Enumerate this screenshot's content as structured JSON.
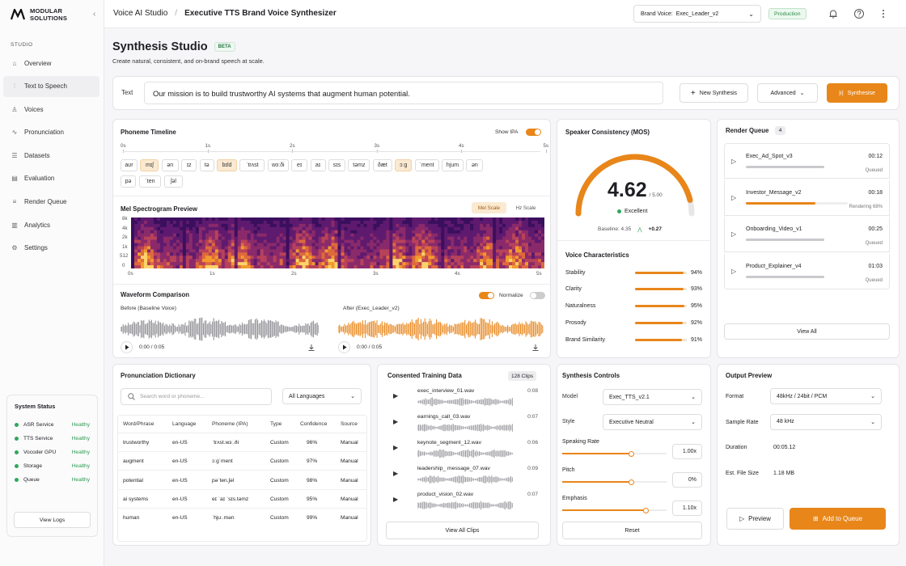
{
  "brand": {
    "name_line1": "MODULAR",
    "name_line2": "SOLUTIONS"
  },
  "sidebar": {
    "section": "STUDIO",
    "items": [
      {
        "label": "Overview",
        "icon": "home-icon"
      },
      {
        "label": "Text to Speech",
        "icon": "waveform-icon"
      },
      {
        "label": "Voices",
        "icon": "person-voice-icon"
      },
      {
        "label": "Pronunciation",
        "icon": "pulse-icon"
      },
      {
        "label": "Datasets",
        "icon": "database-icon"
      },
      {
        "label": "Evaluation",
        "icon": "clipboard-icon"
      },
      {
        "label": "Render Queue",
        "icon": "queue-icon"
      },
      {
        "label": "Analytics",
        "icon": "bar-chart-icon"
      },
      {
        "label": "Settings",
        "icon": "gear-icon"
      }
    ],
    "active_index": 1,
    "system_status": {
      "title": "System Status",
      "items": [
        {
          "name": "ASR Service",
          "status": "Healthy"
        },
        {
          "name": "TTS Service",
          "status": "Healthy"
        },
        {
          "name": "Vocoder GPU",
          "status": "Healthy"
        },
        {
          "name": "Storage",
          "status": "Healthy"
        },
        {
          "name": "Queue",
          "status": "Healthy"
        }
      ],
      "button": "View Logs"
    }
  },
  "topbar": {
    "crumb1": "Voice AI Studio",
    "crumb2": "Executive TTS Brand Voice Synthesizer",
    "brand_voice_label": "Brand Voice:",
    "brand_voice_value": "Exec_Leader_v2",
    "env_badge": "Production"
  },
  "page": {
    "title": "Synthesis Studio",
    "badge": "BETA",
    "subtitle": "Create natural, consistent, and on-brand speech at scale."
  },
  "text_bar": {
    "label": "Text",
    "value": "Our mission is to build trustworthy AI systems that augment human potential.",
    "new_button": "New Synthesis",
    "advanced": "Advanced",
    "synth_button": "Synthesise"
  },
  "phoneme": {
    "title": "Phoneme Timeline",
    "toggle_label": "Show IPA",
    "ticks": [
      "0s",
      "1s",
      "2s",
      "3s",
      "4s",
      "5s"
    ],
    "row1": [
      {
        "p": "aʊr",
        "hl": false
      },
      {
        "p": "mɪʃ",
        "hl": true
      },
      {
        "p": "ən",
        "hl": false
      },
      {
        "p": "ɪz",
        "hl": false
      },
      {
        "p": "tə",
        "hl": false
      },
      {
        "p": "bɪld",
        "hl": true
      },
      {
        "p": "ˈtrʌst",
        "hl": false
      },
      {
        "p": "wɜːði",
        "hl": false
      },
      {
        "p": "eɪ",
        "hl": false
      },
      {
        "p": "aɪ",
        "hl": false
      },
      {
        "p": "sɪs",
        "hl": false
      },
      {
        "p": "təmz",
        "hl": false
      },
      {
        "p": "ðæt",
        "hl": false
      },
      {
        "p": "ɔːg",
        "hl": true
      },
      {
        "p": "ˈment",
        "hl": false
      },
      {
        "p": "hjum",
        "hl": false
      },
      {
        "p": "ən",
        "hl": false
      }
    ],
    "row2": [
      {
        "p": "pə",
        "hl": false
      },
      {
        "p": "ˈten",
        "hl": false
      },
      {
        "p": "ʃəl",
        "hl": false
      }
    ]
  },
  "mel": {
    "title": "Mel Spectrogram Preview",
    "mode_on": "Mel Scale",
    "mode_off": "Hz Scale",
    "y_ticks": [
      "8k",
      "4k",
      "2k",
      "1k",
      "512",
      "0"
    ],
    "x_ticks": [
      "0s",
      "1s",
      "2s",
      "3s",
      "4s",
      "5s"
    ]
  },
  "waveform": {
    "title": "Waveform Comparison",
    "normalize": "Normalize",
    "before_label": "Before (Baseline Voice)",
    "after_label": "After (Exec_Leader_v2)",
    "before_time": "0:00 / 0:05",
    "after_time": "0:00 / 0:05"
  },
  "consistency": {
    "title": "Speaker Consistency (MOS)",
    "score": "4.62",
    "max": "/ 5.00",
    "score_value": 4.62,
    "score_max": 5,
    "rating": "Excellent",
    "baseline_label": "Baseline: 4.35",
    "delta": "+0.27",
    "characteristics_title": "Voice Characteristics",
    "characteristics": [
      {
        "name": "Stability",
        "value": "94%",
        "pct": 94
      },
      {
        "name": "Clarity",
        "value": "93%",
        "pct": 93
      },
      {
        "name": "Naturalness",
        "value": "95%",
        "pct": 95
      },
      {
        "name": "Prosody",
        "value": "92%",
        "pct": 92
      },
      {
        "name": "Brand Similarity",
        "value": "91%",
        "pct": 91
      }
    ]
  },
  "queue": {
    "title": "Render Queue",
    "count": "4",
    "items": [
      {
        "name": "Exec_Ad_Spot_v3",
        "time": "00:12",
        "status": "Queued",
        "progress": 0
      },
      {
        "name": "Investor_Message_v2",
        "time": "00:18",
        "status": "Rendering 68%",
        "progress": 68
      },
      {
        "name": "Onboarding_Video_v1",
        "time": "00:25",
        "status": "Queued",
        "progress": 0
      },
      {
        "name": "Product_Explainer_v4",
        "time": "01:03",
        "status": "Queued",
        "progress": 0
      }
    ],
    "view_all": "View All"
  },
  "dictionary": {
    "title": "Pronunciation Dictionary",
    "search_placeholder": "Search word or phoneme...",
    "language_filter": "All Languages",
    "headers": [
      "Word/Phrase",
      "Language",
      "Phoneme (IPA)",
      "Type",
      "Confidence",
      "Source"
    ],
    "rows": [
      [
        "trustworthy",
        "en-US",
        "ˈtrʌst.wɜː.ði",
        "Custom",
        "96%",
        "Manual"
      ],
      [
        "augment",
        "en-US",
        "ɔːgˈment",
        "Custom",
        "97%",
        "Manual"
      ],
      [
        "potential",
        "en-US",
        "pəˈten.ʃəl",
        "Custom",
        "98%",
        "Manual"
      ],
      [
        "ai systems",
        "en-US",
        "eɪ ˈaɪ ˈsɪs.təmz",
        "Custom",
        "95%",
        "Manual"
      ],
      [
        "human",
        "en-US",
        "ˈhjuː.mən",
        "Custom",
        "99%",
        "Manual"
      ]
    ]
  },
  "training": {
    "title": "Consented Training Data",
    "count": "128 Clips",
    "clips": [
      {
        "name": "exec_interview_01.wav",
        "dur": "0:08"
      },
      {
        "name": "earnings_call_03.wav",
        "dur": "0:07"
      },
      {
        "name": "keynote_segment_12.wav",
        "dur": "0:06"
      },
      {
        "name": "leadership_ message_07.wav",
        "dur": "0:09"
      },
      {
        "name": "product_vision_02.wav",
        "dur": "0:07"
      }
    ],
    "view_all": "View All Clips"
  },
  "controls": {
    "title": "Synthesis Controls",
    "model_label": "Model",
    "model_value": "Exec_TTS_v2.1",
    "style_label": "Style",
    "style_value": "Executive Neutral",
    "sliders": [
      {
        "label": "Speaking Rate",
        "value": "1.00x",
        "pos": 0.66
      },
      {
        "label": "Pitch",
        "value": "0%",
        "pos": 0.66
      },
      {
        "label": "Emphasis",
        "value": "1.10x",
        "pos": 0.8
      }
    ],
    "reset": "Reset"
  },
  "output": {
    "title": "Output Preview",
    "rows": [
      {
        "label": "Format",
        "value": "48kHz / 24bit / PCM",
        "select": true
      },
      {
        "label": "Sample Rate",
        "value": "48 kHz",
        "select": true
      },
      {
        "label": "Duration",
        "value": "00:05.12",
        "select": false
      },
      {
        "label": "Est. File Size",
        "value": "1.18 MB",
        "select": false
      }
    ],
    "preview": "Preview",
    "add": "Add to Queue"
  },
  "colors": {
    "accent": "#e8861a",
    "success": "#2fa85a"
  }
}
